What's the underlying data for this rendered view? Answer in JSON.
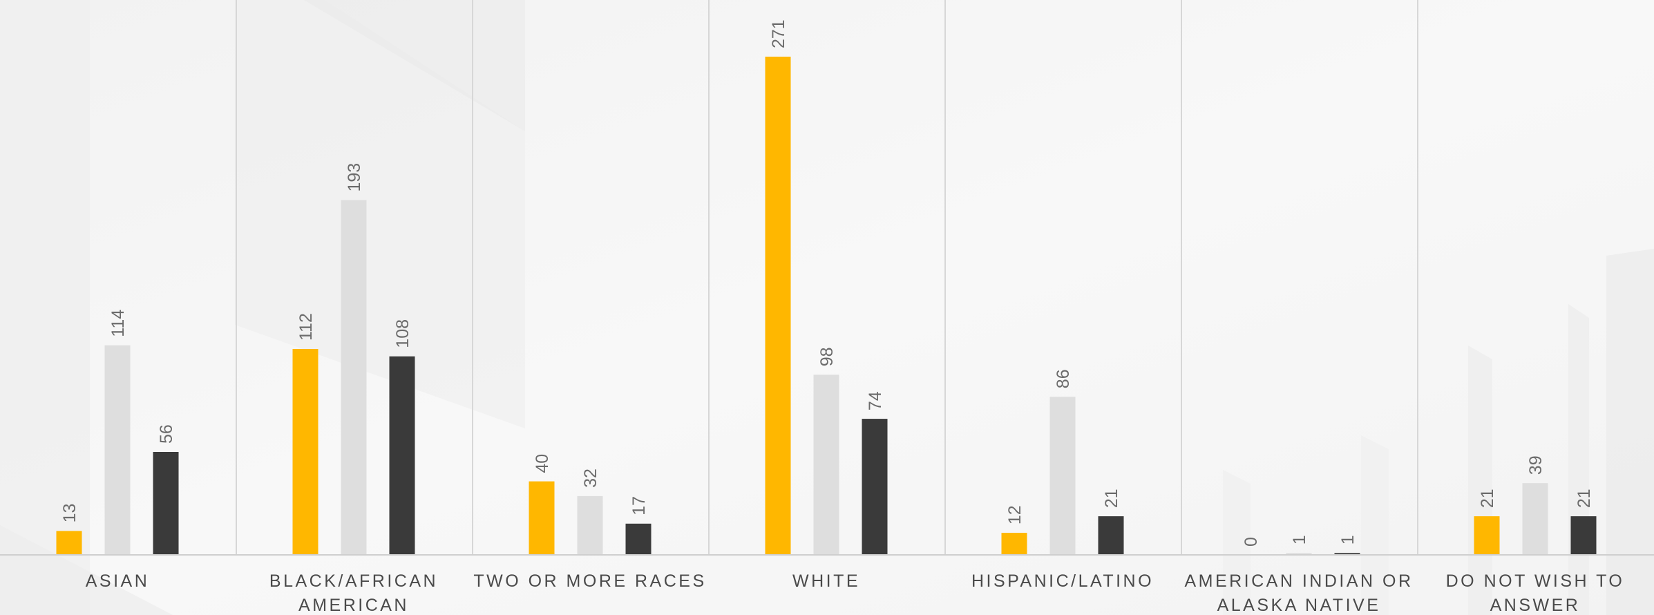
{
  "chart_data": {
    "type": "bar",
    "categories": [
      [
        "ASIAN"
      ],
      [
        "BLACK/AFRICAN",
        "AMERICAN"
      ],
      [
        "TWO OR MORE RACES"
      ],
      [
        "WHITE"
      ],
      [
        "HISPANIC/LATINO"
      ],
      [
        "AMERICAN INDIAN OR",
        "ALASKA NATIVE"
      ],
      [
        "DO NOT WISH TO",
        "ANSWER"
      ]
    ],
    "series": [
      {
        "values": [
          13,
          112,
          40,
          271,
          12,
          0,
          21
        ]
      },
      {
        "values": [
          114,
          193,
          32,
          98,
          86,
          1,
          39
        ]
      },
      {
        "values": [
          56,
          108,
          17,
          74,
          21,
          1,
          21
        ]
      }
    ],
    "ylim": [
      0,
      300
    ],
    "data_labels": true,
    "grid": false,
    "category_separators": true,
    "colors": [
      "#ffb700",
      "#dedede",
      "#3a3a3a"
    ],
    "background_color": "#f6f6f6",
    "title": "",
    "xlabel": "",
    "ylabel": ""
  }
}
